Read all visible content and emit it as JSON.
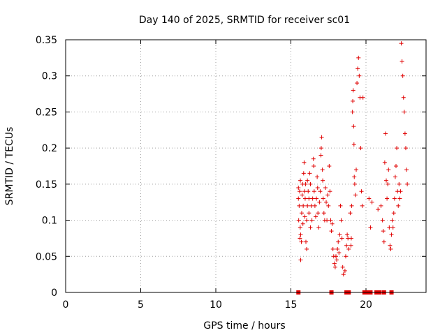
{
  "chart_data": {
    "type": "scatter",
    "title": "Day 140 of 2025, SRMTID for receiver sc01",
    "xlabel": "GPS time / hours",
    "ylabel": "SRMTID / TECUs",
    "xlim": [
      0,
      24
    ],
    "ylim": [
      0,
      0.35
    ],
    "xticks": [
      0,
      5,
      10,
      15,
      20
    ],
    "xtick_labels": [
      "0",
      "5",
      "10",
      "15",
      "20"
    ],
    "yticks": [
      0,
      0.05,
      0.1,
      0.15,
      0.2,
      0.25,
      0.3,
      0.35
    ],
    "ytick_labels": [
      "0",
      "0.05",
      "0.1",
      "0.15",
      "0.2",
      "0.25",
      "0.3",
      "0.35"
    ],
    "grid": true,
    "marker": "+",
    "color": "#e00000",
    "zero_markers_x": [
      15.5,
      17.7,
      18.7,
      18.85,
      19.9,
      20.1,
      20.3,
      20.7,
      20.9,
      21.2,
      21.7
    ],
    "series": [
      {
        "name": "SRMTID",
        "points": [
          [
            15.5,
            0.13
          ],
          [
            15.5,
            0.145
          ],
          [
            15.52,
            0.1
          ],
          [
            15.55,
            0.12
          ],
          [
            15.58,
            0.14
          ],
          [
            15.6,
            0.075
          ],
          [
            15.62,
            0.09
          ],
          [
            15.63,
            0.155
          ],
          [
            15.65,
            0.08
          ],
          [
            15.65,
            0.045
          ],
          [
            15.7,
            0.07
          ],
          [
            15.72,
            0.11
          ],
          [
            15.75,
            0.135
          ],
          [
            15.78,
            0.15
          ],
          [
            15.8,
            0.095
          ],
          [
            15.82,
            0.12
          ],
          [
            15.85,
            0.165
          ],
          [
            15.88,
            0.18
          ],
          [
            15.9,
            0.14
          ],
          [
            15.93,
            0.105
          ],
          [
            15.95,
            0.13
          ],
          [
            15.98,
            0.15
          ],
          [
            16.0,
            0.07
          ],
          [
            16.05,
            0.1
          ],
          [
            16.05,
            0.06
          ],
          [
            16.1,
            0.12
          ],
          [
            16.1,
            0.155
          ],
          [
            16.15,
            0.14
          ],
          [
            16.2,
            0.11
          ],
          [
            16.2,
            0.13
          ],
          [
            16.25,
            0.165
          ],
          [
            16.3,
            0.15
          ],
          [
            16.3,
            0.09
          ],
          [
            16.35,
            0.12
          ],
          [
            16.4,
            0.1
          ],
          [
            16.45,
            0.13
          ],
          [
            16.5,
            0.185
          ],
          [
            16.52,
            0.175
          ],
          [
            16.55,
            0.14
          ],
          [
            16.6,
            0.12
          ],
          [
            16.65,
            0.105
          ],
          [
            16.7,
            0.13
          ],
          [
            16.75,
            0.16
          ],
          [
            16.78,
            0.145
          ],
          [
            16.8,
            0.11
          ],
          [
            16.85,
            0.09
          ],
          [
            16.9,
            0.125
          ],
          [
            16.95,
            0.14
          ],
          [
            17.0,
            0.19
          ],
          [
            17.02,
            0.2
          ],
          [
            17.05,
            0.215
          ],
          [
            17.1,
            0.17
          ],
          [
            17.12,
            0.155
          ],
          [
            17.15,
            0.13
          ],
          [
            17.2,
            0.11
          ],
          [
            17.25,
            0.1
          ],
          [
            17.3,
            0.145
          ],
          [
            17.35,
            0.125
          ],
          [
            17.4,
            0.1
          ],
          [
            17.45,
            0.135
          ],
          [
            17.5,
            0.12
          ],
          [
            17.55,
            0.175
          ],
          [
            17.6,
            0.14
          ],
          [
            17.65,
            0.1
          ],
          [
            17.7,
            0.085
          ],
          [
            17.75,
            0.095
          ],
          [
            17.8,
            0.06
          ],
          [
            17.85,
            0.05
          ],
          [
            17.9,
            0.04
          ],
          [
            17.95,
            0.035
          ],
          [
            18.0,
            0.05
          ],
          [
            18.05,
            0.045
          ],
          [
            18.1,
            0.06
          ],
          [
            18.15,
            0.07
          ],
          [
            18.2,
            0.055
          ],
          [
            18.25,
            0.08
          ],
          [
            18.3,
            0.12
          ],
          [
            18.35,
            0.1
          ],
          [
            18.4,
            0.075
          ],
          [
            18.45,
            0.035
          ],
          [
            18.5,
            0.025
          ],
          [
            18.6,
            0.03
          ],
          [
            18.65,
            0.05
          ],
          [
            18.7,
            0.065
          ],
          [
            18.75,
            0.08
          ],
          [
            18.8,
            0.075
          ],
          [
            18.85,
            0.06
          ],
          [
            18.95,
            0.11
          ],
          [
            19.0,
            0.065
          ],
          [
            19.02,
            0.075
          ],
          [
            19.05,
            0.12
          ],
          [
            19.1,
            0.25
          ],
          [
            19.12,
            0.265
          ],
          [
            19.15,
            0.28
          ],
          [
            19.18,
            0.23
          ],
          [
            19.2,
            0.205
          ],
          [
            19.22,
            0.16
          ],
          [
            19.25,
            0.15
          ],
          [
            19.3,
            0.135
          ],
          [
            19.35,
            0.17
          ],
          [
            19.4,
            0.29
          ],
          [
            19.45,
            0.31
          ],
          [
            19.5,
            0.325
          ],
          [
            19.55,
            0.3
          ],
          [
            19.6,
            0.27
          ],
          [
            19.65,
            0.2
          ],
          [
            19.7,
            0.14
          ],
          [
            19.75,
            0.12
          ],
          [
            19.8,
            0.27
          ],
          [
            20.2,
            0.13
          ],
          [
            20.3,
            0.09
          ],
          [
            20.4,
            0.125
          ],
          [
            20.8,
            0.115
          ],
          [
            21.0,
            0.12
          ],
          [
            21.1,
            0.1
          ],
          [
            21.15,
            0.085
          ],
          [
            21.2,
            0.07
          ],
          [
            21.25,
            0.18
          ],
          [
            21.3,
            0.22
          ],
          [
            21.35,
            0.155
          ],
          [
            21.4,
            0.13
          ],
          [
            21.45,
            0.15
          ],
          [
            21.5,
            0.17
          ],
          [
            21.55,
            0.09
          ],
          [
            21.6,
            0.065
          ],
          [
            21.65,
            0.06
          ],
          [
            21.7,
            0.08
          ],
          [
            21.75,
            0.1
          ],
          [
            21.8,
            0.09
          ],
          [
            21.85,
            0.11
          ],
          [
            21.9,
            0.13
          ],
          [
            21.95,
            0.16
          ],
          [
            22.0,
            0.175
          ],
          [
            22.05,
            0.2
          ],
          [
            22.1,
            0.14
          ],
          [
            22.15,
            0.12
          ],
          [
            22.2,
            0.15
          ],
          [
            22.25,
            0.13
          ],
          [
            22.3,
            0.14
          ],
          [
            22.35,
            0.345
          ],
          [
            22.4,
            0.32
          ],
          [
            22.45,
            0.3
          ],
          [
            22.5,
            0.27
          ],
          [
            22.55,
            0.25
          ],
          [
            22.6,
            0.22
          ],
          [
            22.65,
            0.2
          ],
          [
            22.7,
            0.17
          ],
          [
            22.75,
            0.15
          ]
        ]
      }
    ]
  }
}
